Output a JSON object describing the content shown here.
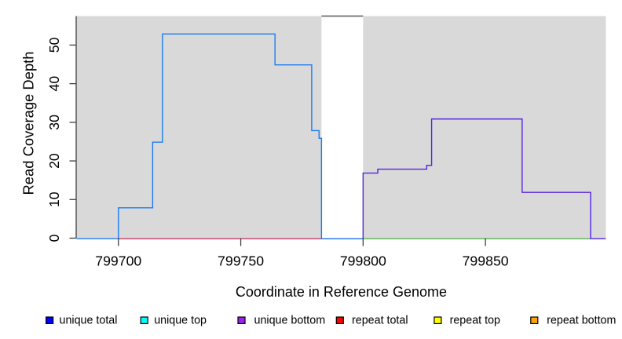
{
  "chart_data": {
    "type": "line",
    "subtype": "step-coverage",
    "title": "",
    "xlabel": "Coordinate in Reference Genome",
    "ylabel": "Read Coverage Depth",
    "xlim": [
      799682.9,
      799899.2
    ],
    "ylim": [
      0,
      57.5
    ],
    "x_ticks": [
      799700,
      799750,
      799800,
      799850
    ],
    "x_tick_labels": [
      "799700",
      "799750",
      "799800",
      "799850"
    ],
    "y_ticks": [
      0,
      10,
      20,
      30,
      40,
      50
    ],
    "y_tick_labels": [
      "0",
      "10",
      "20",
      "30",
      "40",
      "50"
    ],
    "grid": "off",
    "panel_color": "#d9d9d9",
    "page_color": "#ffffff",
    "axis_color": "#404040",
    "covered_regions": [
      [
        799682.9,
        799783
      ],
      [
        799800,
        799899.2
      ]
    ],
    "gap_region": {
      "x1": 799783,
      "x2": 799800,
      "marker_color": "#6e6e6e"
    },
    "series": [
      {
        "name": "repeat coverage baseline",
        "color": "#c93c68",
        "kind": "baseline",
        "x1": 799700,
        "x2": 799893,
        "y": 0
      },
      {
        "name": "right region zero baseline",
        "color": "#5abe5a",
        "kind": "baseline",
        "x1": 799800,
        "x2": 799893,
        "y": 0
      },
      {
        "name": "unique coverage left region",
        "color": "#1b7cf3",
        "kind": "step",
        "points": [
          [
            799682.9,
            0
          ],
          [
            799700,
            8
          ],
          [
            799714,
            25
          ],
          [
            799718,
            53
          ],
          [
            799764,
            45
          ],
          [
            799779,
            28
          ],
          [
            799782,
            26
          ],
          [
            799783,
            0
          ]
        ],
        "end": 799800
      },
      {
        "name": "unique coverage right region",
        "color": "#5523e2",
        "kind": "step",
        "rise_from_zero": true,
        "points": [
          [
            799800,
            17
          ],
          [
            799806,
            18
          ],
          [
            799826,
            19
          ],
          [
            799828,
            31
          ],
          [
            799865,
            12
          ],
          [
            799893,
            0
          ]
        ],
        "end": 799899.2
      }
    ]
  },
  "legend": {
    "items": [
      {
        "label": "unique total",
        "color": "#0000ff"
      },
      {
        "label": "unique top",
        "color": "#00ffff"
      },
      {
        "label": "unique bottom",
        "color": "#a020f0"
      },
      {
        "label": "repeat total",
        "color": "#ff0000"
      },
      {
        "label": "repeat top",
        "color": "#ffff00"
      },
      {
        "label": "repeat bottom",
        "color": "#ffa500"
      }
    ],
    "swatch_border_color": "#000000"
  }
}
